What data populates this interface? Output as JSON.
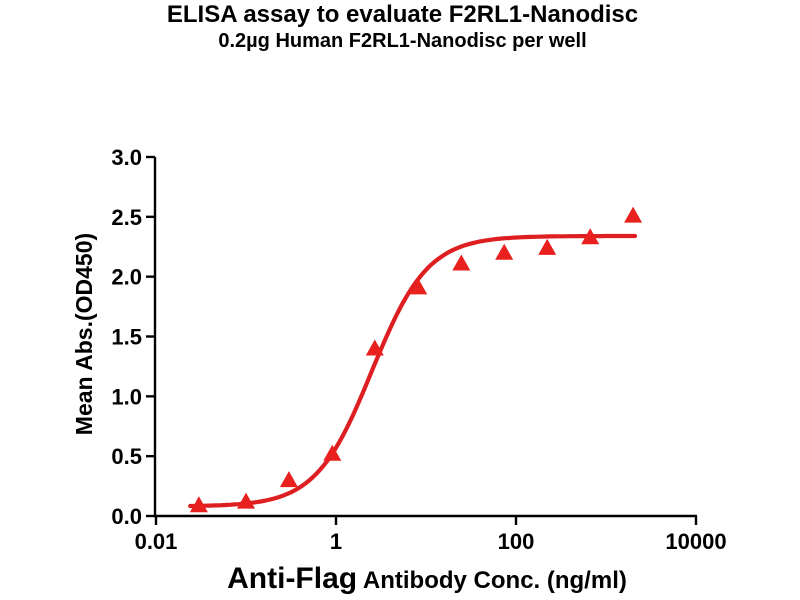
{
  "chart_data": {
    "type": "scatter",
    "title": "ELISA assay to evaluate F2RL1-Nanodisc",
    "subtitle": "0.2µg Human F2RL1-Nanodisc per well",
    "xlabel_emphasis": "Anti-Flag",
    "xlabel_rest": " Antibody Conc. (ng/ml)",
    "ylabel": "Mean Abs.(OD450)",
    "x_scale": "log10",
    "xlim": [
      0.01,
      10000
    ],
    "ylim": [
      0.0,
      3.0
    ],
    "grid": false,
    "legend": "none",
    "x_ticks": [
      {
        "value": 0.01,
        "label": "0.01"
      },
      {
        "value": 1,
        "label": "1"
      },
      {
        "value": 100,
        "label": "100"
      },
      {
        "value": 10000,
        "label": "10000"
      }
    ],
    "y_ticks": [
      {
        "value": 0.0,
        "label": "0.0"
      },
      {
        "value": 0.5,
        "label": "0.5"
      },
      {
        "value": 1.0,
        "label": "1.0"
      },
      {
        "value": 1.5,
        "label": "1.5"
      },
      {
        "value": 2.0,
        "label": "2.0"
      },
      {
        "value": 2.5,
        "label": "2.5"
      },
      {
        "value": 3.0,
        "label": "3.0"
      }
    ],
    "series": [
      {
        "name": "Human F2RL1-Nanodisc",
        "marker": "triangle",
        "color": "#e8201e",
        "x": [
          0.03,
          0.1,
          0.3,
          0.91,
          2.7,
          8.2,
          24.7,
          74,
          222,
          667,
          2000
        ],
        "y": [
          0.09,
          0.12,
          0.3,
          0.52,
          1.4,
          1.91,
          2.11,
          2.2,
          2.24,
          2.33,
          2.51
        ]
      }
    ],
    "fit_curve": {
      "model": "4PL-sigmoid",
      "bottom": 0.08,
      "top": 2.34,
      "ec50": 2.5,
      "hill": 1.4,
      "x_range": [
        0.024,
        2100
      ],
      "color": "#de1f22",
      "stroke_width": 4.2
    },
    "axis_color": "#000000",
    "tick_label_size": 22
  }
}
